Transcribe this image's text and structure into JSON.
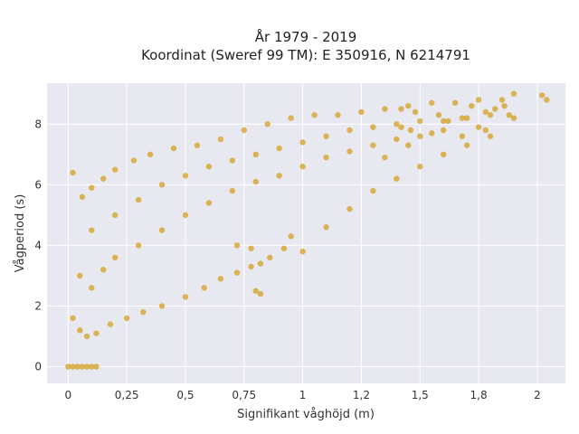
{
  "chart_data": {
    "type": "scatter",
    "title_line1": "År 1979 - 2019",
    "title_line2": "Koordinat (Sweref 99 TM): E 350916, N 6214791",
    "xlabel": "Signifikant våghöjd (m)",
    "ylabel": "Vågperiod (s)",
    "xlim": [
      -0.09,
      2.12
    ],
    "ylim": [
      -0.55,
      9.35
    ],
    "xticks": [
      0,
      0.25,
      0.5,
      0.75,
      1,
      1.25,
      1.5,
      1.75,
      2
    ],
    "xtick_labels": [
      "0",
      "0,25",
      "0,5",
      "0,75",
      "1",
      "1,2",
      "1,5",
      "1,8",
      "2"
    ],
    "yticks": [
      0,
      2,
      4,
      6,
      8
    ],
    "ytick_labels": [
      "0",
      "2",
      "4",
      "6",
      "8"
    ],
    "grid": true,
    "marker_color": "#D4A020",
    "background_color": "#E8E8F0",
    "series": [
      {
        "points": [
          [
            0.0,
            0.0
          ],
          [
            0.02,
            0.0
          ],
          [
            0.04,
            0.0
          ],
          [
            0.06,
            0.0
          ],
          [
            0.08,
            0.0
          ],
          [
            0.1,
            0.0
          ],
          [
            0.12,
            0.0
          ],
          [
            0.02,
            1.6
          ],
          [
            0.05,
            1.2
          ],
          [
            0.08,
            1.0
          ],
          [
            0.12,
            1.1
          ],
          [
            0.18,
            1.4
          ],
          [
            0.25,
            1.6
          ],
          [
            0.32,
            1.8
          ],
          [
            0.4,
            2.0
          ],
          [
            0.5,
            2.3
          ],
          [
            0.58,
            2.6
          ],
          [
            0.65,
            2.9
          ],
          [
            0.72,
            3.1
          ],
          [
            0.78,
            3.3
          ],
          [
            0.82,
            3.4
          ],
          [
            0.86,
            3.6
          ],
          [
            0.02,
            6.4
          ],
          [
            0.06,
            5.6
          ],
          [
            0.1,
            5.9
          ],
          [
            0.15,
            6.2
          ],
          [
            0.2,
            6.5
          ],
          [
            0.28,
            6.8
          ],
          [
            0.35,
            7.0
          ],
          [
            0.45,
            7.2
          ],
          [
            0.55,
            7.3
          ],
          [
            0.65,
            7.5
          ],
          [
            0.75,
            7.8
          ],
          [
            0.85,
            8.0
          ],
          [
            0.95,
            8.2
          ],
          [
            1.05,
            8.3
          ],
          [
            1.15,
            8.3
          ],
          [
            1.25,
            8.4
          ],
          [
            1.35,
            8.5
          ],
          [
            1.45,
            8.6
          ],
          [
            1.55,
            8.7
          ],
          [
            1.65,
            8.7
          ],
          [
            1.75,
            8.8
          ],
          [
            1.85,
            8.8
          ],
          [
            1.9,
            9.0
          ],
          [
            2.02,
            8.95
          ],
          [
            2.04,
            8.8
          ],
          [
            1.0,
            3.8
          ],
          [
            1.1,
            4.6
          ],
          [
            1.2,
            5.2
          ],
          [
            1.3,
            5.8
          ],
          [
            1.4,
            6.2
          ],
          [
            1.5,
            6.6
          ],
          [
            1.6,
            7.0
          ],
          [
            1.7,
            7.3
          ],
          [
            1.8,
            7.6
          ],
          [
            1.9,
            8.2
          ],
          [
            1.55,
            7.7
          ],
          [
            1.45,
            7.3
          ],
          [
            1.35,
            6.9
          ],
          [
            0.72,
            4.0
          ],
          [
            0.78,
            3.9
          ],
          [
            0.82,
            2.4
          ],
          [
            0.8,
            2.5
          ],
          [
            0.92,
            3.9
          ],
          [
            0.95,
            4.3
          ],
          [
            0.1,
            4.5
          ],
          [
            0.2,
            5.0
          ],
          [
            0.3,
            5.5
          ],
          [
            0.4,
            6.0
          ],
          [
            0.5,
            6.3
          ],
          [
            0.6,
            6.6
          ],
          [
            0.7,
            6.8
          ],
          [
            0.8,
            7.0
          ],
          [
            0.9,
            7.2
          ],
          [
            1.0,
            7.4
          ],
          [
            1.1,
            7.6
          ],
          [
            1.2,
            7.8
          ],
          [
            1.3,
            7.9
          ],
          [
            1.4,
            8.0
          ],
          [
            1.5,
            8.1
          ],
          [
            1.6,
            8.1
          ],
          [
            1.7,
            8.2
          ],
          [
            1.8,
            8.3
          ],
          [
            0.05,
            3.0
          ],
          [
            0.1,
            2.6
          ],
          [
            0.15,
            3.2
          ],
          [
            0.2,
            3.6
          ],
          [
            0.3,
            4.0
          ],
          [
            0.4,
            4.5
          ],
          [
            0.5,
            5.0
          ],
          [
            0.6,
            5.4
          ],
          [
            0.7,
            5.8
          ],
          [
            0.8,
            6.1
          ],
          [
            0.9,
            6.3
          ],
          [
            1.0,
            6.6
          ],
          [
            1.1,
            6.9
          ],
          [
            1.2,
            7.1
          ],
          [
            1.3,
            7.3
          ],
          [
            1.4,
            7.5
          ],
          [
            1.42,
            8.5
          ],
          [
            1.48,
            8.4
          ],
          [
            1.58,
            8.3
          ],
          [
            1.62,
            8.1
          ],
          [
            1.68,
            8.2
          ],
          [
            1.72,
            8.6
          ],
          [
            1.78,
            8.4
          ],
          [
            1.82,
            8.5
          ],
          [
            1.86,
            8.6
          ],
          [
            1.88,
            8.3
          ],
          [
            1.5,
            7.6
          ],
          [
            1.6,
            7.8
          ],
          [
            1.68,
            7.6
          ],
          [
            1.75,
            7.9
          ],
          [
            1.78,
            7.8
          ],
          [
            1.42,
            7.9
          ],
          [
            1.46,
            7.8
          ]
        ]
      }
    ]
  }
}
